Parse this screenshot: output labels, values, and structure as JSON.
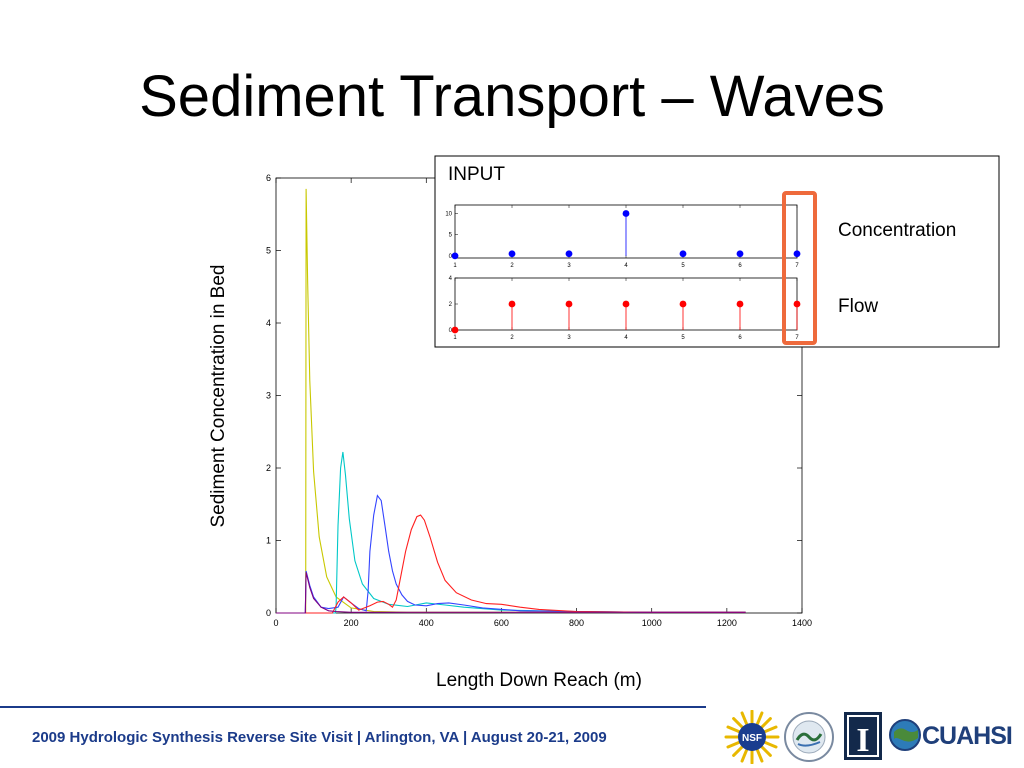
{
  "slide": {
    "title": "Sediment Transport – Waves",
    "footer": "2009 Hydrologic Synthesis Reverse Site Visit | Arlington, VA | August 20-21, 2009"
  },
  "logos": [
    {
      "name": "NSF",
      "text": "NSF",
      "color": "#1a3d8f"
    },
    {
      "name": "Hydrologic Synthesis",
      "text": "",
      "color": "#2a6f3a"
    },
    {
      "name": "Illinois",
      "text": "I",
      "color": "#13294b"
    },
    {
      "name": "CUAHSI",
      "text": "CUAHSI",
      "color": "#1f3f7a"
    }
  ],
  "colors": {
    "footer": "#1b3b8a",
    "highlight_box": "#ee6a3c",
    "concentration": "#0000ff",
    "flow": "#ff0000"
  },
  "chart_data": [
    {
      "type": "line",
      "xlabel": "Length Down Reach (m)",
      "ylabel": "Sediment Concentration in Bed",
      "xlim": [
        0,
        1400
      ],
      "ylim": [
        0,
        6
      ],
      "xticks": [
        0,
        200,
        400,
        600,
        800,
        1000,
        1200,
        1400
      ],
      "yticks": [
        0,
        1,
        2,
        3,
        4,
        5,
        6
      ],
      "grid": false,
      "series": [
        {
          "color": "#c8c800",
          "x": [
            0,
            75,
            79,
            80,
            84,
            90,
            100,
            115,
            135,
            160,
            200,
            260,
            350,
            500,
            700,
            1000,
            1250
          ],
          "y": [
            0,
            0,
            0,
            5.85,
            4.6,
            3.2,
            1.95,
            1.05,
            0.5,
            0.22,
            0.07,
            0.02,
            0.01,
            0.01,
            0.01,
            0.01,
            0.01
          ]
        },
        {
          "color": "#00c8c8",
          "x": [
            0,
            158,
            160,
            165,
            172,
            178,
            185,
            195,
            210,
            230,
            260,
            300,
            350,
            400,
            450,
            500,
            600,
            800,
            1000,
            1250
          ],
          "y": [
            0,
            0,
            0.08,
            1.2,
            2.0,
            2.22,
            1.9,
            1.3,
            0.72,
            0.4,
            0.2,
            0.12,
            0.09,
            0.14,
            0.11,
            0.08,
            0.04,
            0.02,
            0.01,
            0.01
          ]
        },
        {
          "color": "#3344ff",
          "x": [
            0,
            78,
            80,
            90,
            100,
            120,
            140,
            165,
            180,
            200,
            220,
            240,
            245,
            250,
            260,
            270,
            280,
            290,
            300,
            310,
            320,
            335,
            350,
            370,
            400,
            430,
            460,
            500,
            550,
            650,
            800,
            1000,
            1250
          ],
          "y": [
            0,
            0,
            0.58,
            0.38,
            0.22,
            0.08,
            0.06,
            0.08,
            0.22,
            0.14,
            0.06,
            0.03,
            0.3,
            0.85,
            1.35,
            1.62,
            1.55,
            1.2,
            0.85,
            0.58,
            0.4,
            0.25,
            0.16,
            0.11,
            0.1,
            0.13,
            0.14,
            0.11,
            0.07,
            0.03,
            0.02,
            0.01,
            0.01
          ]
        },
        {
          "color": "#ff2020",
          "x": [
            0,
            150,
            165,
            180,
            200,
            220,
            250,
            270,
            285,
            300,
            310,
            320,
            330,
            345,
            360,
            375,
            385,
            395,
            410,
            430,
            450,
            480,
            520,
            560,
            600,
            650,
            700,
            800,
            1000,
            1250
          ],
          "y": [
            0,
            0,
            0.15,
            0.22,
            0.14,
            0.04,
            0.1,
            0.15,
            0.16,
            0.12,
            0.08,
            0.18,
            0.45,
            0.85,
            1.15,
            1.33,
            1.35,
            1.28,
            1.05,
            0.7,
            0.45,
            0.28,
            0.18,
            0.13,
            0.12,
            0.08,
            0.05,
            0.02,
            0.01,
            0.01
          ]
        },
        {
          "color": "#800080",
          "x": [
            0,
            78,
            80,
            90,
            100,
            120,
            140,
            160,
            200,
            250,
            300,
            400,
            600,
            1000,
            1250
          ],
          "y": [
            0,
            0,
            0.56,
            0.35,
            0.2,
            0.08,
            0.03,
            0.02,
            0.01,
            0.01,
            0.01,
            0.01,
            0.01,
            0.01,
            0.01
          ]
        }
      ]
    },
    {
      "type": "stem",
      "name": "Concentration",
      "title": "INPUT",
      "label": "Concentration",
      "color": "#0000ff",
      "x": [
        1,
        2,
        3,
        4,
        5,
        6,
        7
      ],
      "y": [
        0,
        0.5,
        0.5,
        10,
        0.5,
        0.5,
        0.5
      ],
      "xlim": [
        1,
        7
      ],
      "ylim": [
        -0.5,
        12
      ],
      "xticks": [
        1,
        2,
        3,
        4,
        5,
        6,
        7
      ],
      "yticks": [
        0,
        5,
        10
      ]
    },
    {
      "type": "stem",
      "name": "Flow",
      "label": "Flow",
      "color": "#ff0000",
      "x": [
        1,
        2,
        3,
        4,
        5,
        6,
        7
      ],
      "y": [
        0,
        2,
        2,
        2,
        2,
        2,
        2
      ],
      "xlim": [
        1,
        7
      ],
      "ylim": [
        0,
        4
      ],
      "xticks": [
        1,
        2,
        3,
        4,
        5,
        6,
        7
      ],
      "yticks": [
        0,
        2,
        4
      ]
    }
  ]
}
